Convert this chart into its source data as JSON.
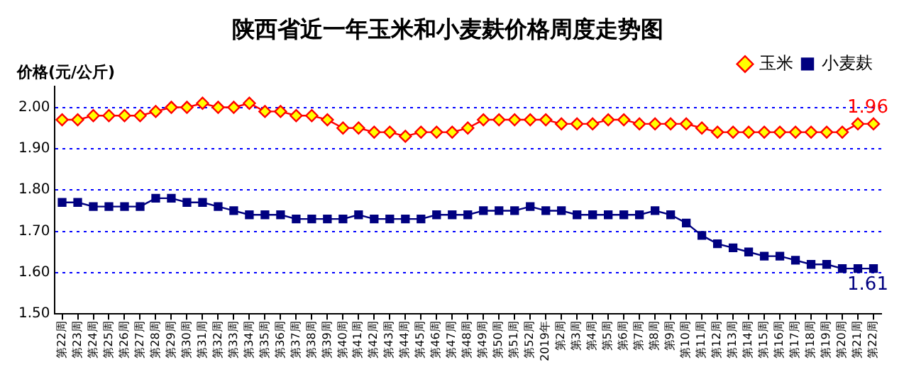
{
  "chart_data": {
    "type": "line",
    "title": "陕西省近一年玉米和小麦麸价格周度走势图",
    "ylabel": "价格(元/公斤)",
    "categories": [
      "第22周",
      "第23周",
      "第24周",
      "第25周",
      "第26周",
      "第27周",
      "第28周",
      "第29周",
      "第30周",
      "第31周",
      "第32周",
      "第33周",
      "第34周",
      "第35周",
      "第36周",
      "第37周",
      "第38周",
      "第39周",
      "第40周",
      "第41周",
      "第42周",
      "第43周",
      "第44周",
      "第45周",
      "第46周",
      "第47周",
      "第48周",
      "第49周",
      "第50周",
      "第51周",
      "第52周",
      "2019年",
      "第2周",
      "第3周",
      "第4周",
      "第5周",
      "第6周",
      "第7周",
      "第8周",
      "第9周",
      "第10周",
      "第11周",
      "第12周",
      "第13周",
      "第14周",
      "第15周",
      "第16周",
      "第17周",
      "第18周",
      "第19周",
      "第20周",
      "第21周",
      "第22周"
    ],
    "series": [
      {
        "name": "玉米",
        "color": "#ff0000",
        "marker": "diamond",
        "values": [
          1.97,
          1.97,
          1.98,
          1.98,
          1.98,
          1.98,
          1.99,
          2.0,
          2.0,
          2.01,
          2.0,
          2.0,
          2.01,
          1.99,
          1.99,
          1.98,
          1.98,
          1.97,
          1.95,
          1.95,
          1.94,
          1.94,
          1.93,
          1.94,
          1.94,
          1.94,
          1.95,
          1.97,
          1.97,
          1.97,
          1.97,
          1.97,
          1.96,
          1.96,
          1.96,
          1.97,
          1.97,
          1.96,
          1.96,
          1.96,
          1.96,
          1.95,
          1.94,
          1.94,
          1.94,
          1.94,
          1.94,
          1.94,
          1.94,
          1.94,
          1.94,
          1.96,
          1.96
        ],
        "value_labels": [
          null,
          null,
          null,
          null,
          null,
          null,
          null,
          null,
          null,
          null,
          null,
          null,
          null,
          null,
          null,
          null,
          null,
          null,
          null,
          null,
          null,
          null,
          null,
          null,
          null,
          null,
          null,
          null,
          null,
          null,
          null,
          null,
          null,
          null,
          null,
          null,
          null,
          null,
          null,
          null,
          null,
          null,
          null,
          null,
          null,
          null,
          null,
          null,
          null,
          null,
          null,
          null,
          "1.96"
        ]
      },
      {
        "name": "小麦麸",
        "color": "#000080",
        "marker": "square",
        "values": [
          1.77,
          1.77,
          1.76,
          1.76,
          1.76,
          1.76,
          1.78,
          1.78,
          1.77,
          1.77,
          1.76,
          1.75,
          1.74,
          1.74,
          1.74,
          1.73,
          1.73,
          1.73,
          1.73,
          1.74,
          1.73,
          1.73,
          1.73,
          1.73,
          1.74,
          1.74,
          1.74,
          1.75,
          1.75,
          1.75,
          1.76,
          1.75,
          1.75,
          1.74,
          1.74,
          1.74,
          1.74,
          1.74,
          1.75,
          1.74,
          1.72,
          1.69,
          1.67,
          1.66,
          1.65,
          1.64,
          1.64,
          1.63,
          1.62,
          1.62,
          1.61,
          1.61,
          1.61
        ],
        "value_labels": [
          null,
          null,
          null,
          null,
          null,
          null,
          null,
          null,
          null,
          null,
          null,
          null,
          null,
          null,
          null,
          null,
          null,
          null,
          null,
          null,
          null,
          null,
          null,
          null,
          null,
          null,
          null,
          null,
          null,
          null,
          null,
          null,
          null,
          null,
          null,
          null,
          null,
          null,
          null,
          null,
          null,
          null,
          null,
          null,
          null,
          null,
          null,
          null,
          null,
          null,
          null,
          null,
          "1.61"
        ]
      }
    ],
    "ylim": [
      1.5,
      2.05
    ],
    "yticks": [
      {
        "value": 1.5,
        "label": "1.50"
      },
      {
        "value": 1.6,
        "label": "1.60"
      },
      {
        "value": 1.7,
        "label": "1.70"
      },
      {
        "value": 1.8,
        "label": "1.80"
      },
      {
        "value": 1.9,
        "label": "1.90"
      },
      {
        "value": 2.0,
        "label": "2.00"
      }
    ],
    "grid": "y",
    "legend": "top right",
    "line_style": "solid"
  }
}
